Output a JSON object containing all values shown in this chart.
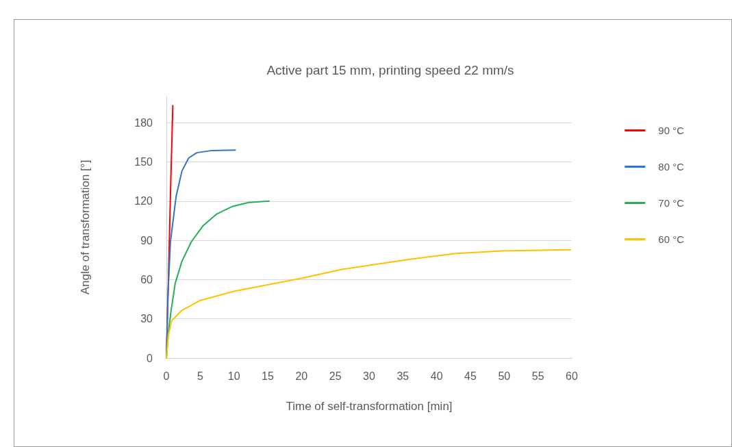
{
  "chart_data": {
    "type": "line",
    "title": "Active part 15 mm, printing speed 22 mm/s",
    "xlabel": "Time of self-transformation [min]",
    "ylabel": "Angle of transformation [°]",
    "xlim": [
      0,
      60
    ],
    "xticks": [
      0,
      5,
      10,
      15,
      20,
      25,
      30,
      35,
      40,
      45,
      50,
      55,
      60
    ],
    "ylim": [
      0,
      200
    ],
    "yticks": [
      0,
      30,
      60,
      90,
      120,
      150,
      180
    ],
    "grid": "y",
    "legend": "right",
    "marker": "none",
    "line_style": "solid",
    "series": [
      {
        "name": "90 °C",
        "color": "#ff0000",
        "x": [
          0,
          0.3,
          0.6,
          0.95
        ],
        "values": [
          0,
          60,
          125,
          193
        ]
      },
      {
        "name": "80 °C",
        "color": "#2e75c6",
        "x": [
          0,
          0.2,
          0.6,
          1.45,
          2.3,
          3.3,
          4.5,
          6.7,
          10.2
        ],
        "values": [
          0,
          45,
          89,
          124,
          143,
          153,
          157,
          158.7,
          159
        ]
      },
      {
        "name": "70 °C",
        "color": "#22b052",
        "x": [
          0,
          0.3,
          0.7,
          1.3,
          2.3,
          3.7,
          5.4,
          7.4,
          9.8,
          12.2,
          15.2
        ],
        "values": [
          0,
          20,
          36.5,
          57,
          74,
          89,
          101,
          110,
          116,
          119,
          120
        ]
      },
      {
        "name": "60 °C",
        "color": "#ffc000",
        "x": [
          0,
          0.3,
          0.8,
          2.3,
          5,
          10,
          15,
          20,
          26.1,
          36.2,
          42.9,
          49.7,
          59.8
        ],
        "values": [
          0,
          18,
          28.6,
          36.5,
          44,
          51,
          56,
          61,
          67.9,
          75.7,
          80,
          81.9,
          82.8
        ]
      }
    ]
  }
}
